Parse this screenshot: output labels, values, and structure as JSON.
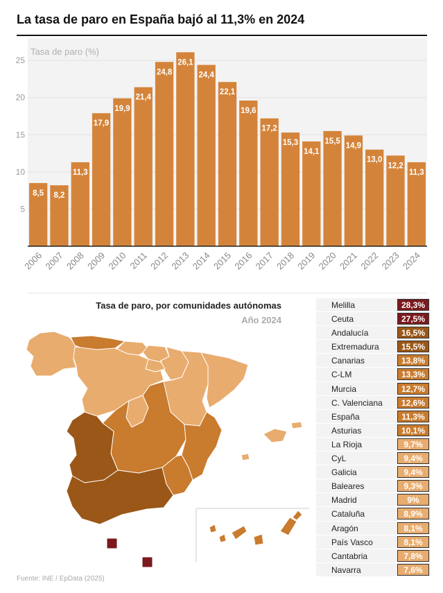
{
  "header": {
    "title": "La tasa de paro en España bajó al 11,3% en 2024"
  },
  "chart_data": [
    {
      "type": "bar",
      "ylabel": "Tasa de paro (%)",
      "categories": [
        "2006",
        "2007",
        "2008",
        "2009",
        "2010",
        "2011",
        "2012",
        "2013",
        "2014",
        "2015",
        "2016",
        "2017",
        "2018",
        "2019",
        "2020",
        "2021",
        "2022",
        "2023",
        "2024"
      ],
      "values": [
        8.5,
        8.2,
        11.3,
        17.9,
        19.9,
        21.4,
        24.8,
        26.1,
        24.4,
        22.1,
        19.6,
        17.2,
        15.3,
        14.1,
        15.5,
        14.9,
        13.0,
        12.2,
        11.3
      ],
      "labels": [
        "8,5",
        "8,2",
        "11,3",
        "17,9",
        "19,9",
        "21,4",
        "24,8",
        "26,1",
        "24,4",
        "22,1",
        "19,6",
        "17,2",
        "15,3",
        "14,1",
        "15,5",
        "14,9",
        "13,0",
        "12,2",
        "11,3"
      ],
      "yticks": [
        "5",
        "10",
        "15",
        "20",
        "25"
      ],
      "ylim": [
        0,
        28
      ],
      "color": "#d4843a",
      "background": "#f3f3f3",
      "grid": true
    },
    {
      "type": "table",
      "title": "Tasa de paro, por comunidades autónomas",
      "subtitle": "Año 2024",
      "rows": [
        {
          "name": "Melilla",
          "value": 28.3,
          "label": "28,3%",
          "color": "#7a1a1e"
        },
        {
          "name": "Ceuta",
          "value": 27.5,
          "label": "27,5%",
          "color": "#7a1a1e"
        },
        {
          "name": "Andalucía",
          "value": 16.5,
          "label": "16,5%",
          "color": "#9a5718"
        },
        {
          "name": "Extremadura",
          "value": 15.5,
          "label": "15,5%",
          "color": "#9a5718"
        },
        {
          "name": "Canarias",
          "value": 13.8,
          "label": "13,8%",
          "color": "#c97b2e"
        },
        {
          "name": "C-LM",
          "value": 13.3,
          "label": "13,3%",
          "color": "#c97b2e"
        },
        {
          "name": "Murcia",
          "value": 12.7,
          "label": "12,7%",
          "color": "#c97b2e"
        },
        {
          "name": "C. Valenciana",
          "value": 12.6,
          "label": "12,6%",
          "color": "#c97b2e"
        },
        {
          "name": "España",
          "value": 11.3,
          "label": "11,3%",
          "color": "#c97b2e"
        },
        {
          "name": "Asturias",
          "value": 10.1,
          "label": "10,1%",
          "color": "#c97b2e"
        },
        {
          "name": "La Rioja",
          "value": 9.7,
          "label": "9,7%",
          "color": "#e8ac6e"
        },
        {
          "name": "CyL",
          "value": 9.4,
          "label": "9,4%",
          "color": "#e8ac6e"
        },
        {
          "name": "Galicia",
          "value": 9.4,
          "label": "9,4%",
          "color": "#e8ac6e"
        },
        {
          "name": "Baleares",
          "value": 9.3,
          "label": "9,3%",
          "color": "#e8ac6e"
        },
        {
          "name": "Madrid",
          "value": 9.0,
          "label": "9%",
          "color": "#e8ac6e"
        },
        {
          "name": "Cataluña",
          "value": 8.9,
          "label": "8,9%",
          "color": "#e8ac6e"
        },
        {
          "name": "Aragón",
          "value": 8.1,
          "label": "8,1%",
          "color": "#e8ac6e"
        },
        {
          "name": "País Vasco",
          "value": 8.1,
          "label": "8,1%",
          "color": "#e8ac6e"
        },
        {
          "name": "Cantabria",
          "value": 7.8,
          "label": "7,8%",
          "color": "#e8ac6e"
        },
        {
          "name": "Navarra",
          "value": 7.6,
          "label": "7,6%",
          "color": "#e8ac6e"
        }
      ]
    }
  ],
  "map": {
    "colors": {
      "high": "#7a1a1e",
      "upper": "#9a5718",
      "mid": "#c97b2e",
      "low": "#e8ac6e",
      "border": "#ffffff"
    }
  },
  "footer": {
    "source": "Fuente: INE / EpData (2025)"
  }
}
